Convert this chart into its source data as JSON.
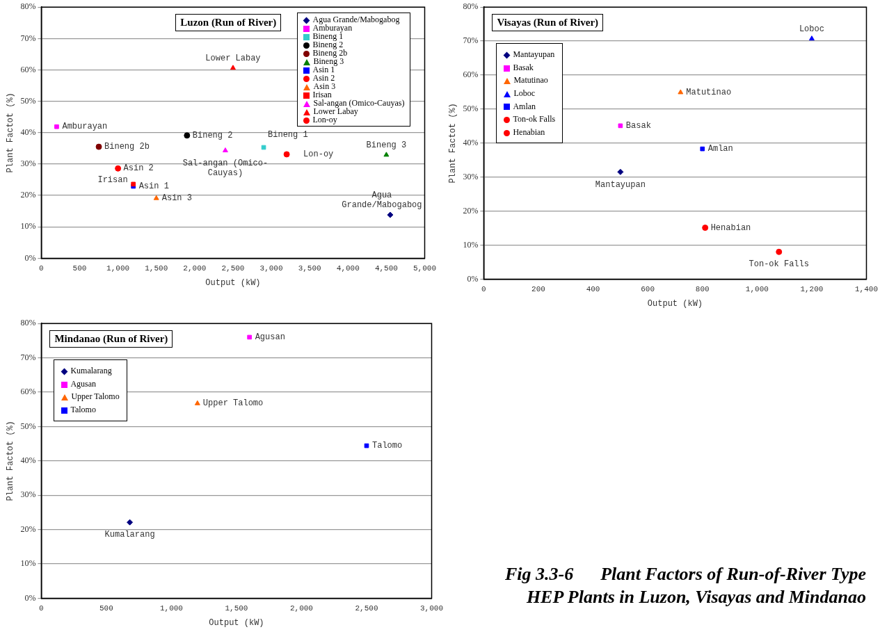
{
  "chart_data": [
    {
      "type": "scatter",
      "title": "Luzon (Run of River)",
      "xlabel": "Output (kW)",
      "ylabel": "Plant Factot (%)",
      "xlim": [
        0,
        5000
      ],
      "xticks": [
        0,
        500,
        {
          "value": 1000,
          "label": "1,000"
        },
        {
          "value": 1500,
          "label": "1,500"
        },
        {
          "value": 2000,
          "label": "2,000"
        },
        {
          "value": 2500,
          "label": "2,500"
        },
        {
          "value": 3000,
          "label": "3,000"
        },
        {
          "value": 3500,
          "label": "3,500"
        },
        {
          "value": 4000,
          "label": "4,000"
        },
        {
          "value": 4500,
          "label": "4,500"
        },
        {
          "value": 5000,
          "label": "5,000"
        }
      ],
      "ylim": [
        0,
        80
      ],
      "yticks": [
        {
          "value": 0,
          "label": "0%"
        },
        {
          "value": 10,
          "label": "10%"
        },
        {
          "value": 20,
          "label": "20%"
        },
        {
          "value": 30,
          "label": "30%"
        },
        {
          "value": 40,
          "label": "40%"
        },
        {
          "value": 50,
          "label": "50%"
        },
        {
          "value": 60,
          "label": "60%"
        },
        {
          "value": 70,
          "label": "70%"
        },
        {
          "value": 80,
          "label": "80%"
        }
      ],
      "grid": "y",
      "legend": "top right",
      "series": [
        {
          "name": "Agua Grande/Mabogabog",
          "color": "#000080",
          "marker": "diamond",
          "x": [
            4550
          ],
          "values": [
            13.8
          ]
        },
        {
          "name": "Amburayan",
          "color": "#ff00ff",
          "marker": "square",
          "x": [
            200
          ],
          "values": [
            41.9
          ]
        },
        {
          "name": "Bineng 1",
          "color": "#33cccc",
          "marker": "square",
          "x": [
            2900
          ],
          "values": [
            35.3
          ]
        },
        {
          "name": "Bineng 2",
          "color": "#000000",
          "marker": "circle",
          "x": [
            1900
          ],
          "values": [
            39.1
          ]
        },
        {
          "name": "Bineng 2b",
          "color": "#800000",
          "marker": "circle",
          "x": [
            750
          ],
          "values": [
            35.5
          ]
        },
        {
          "name": "Bineng 3",
          "color": "#008000",
          "marker": "triangle",
          "x": [
            4500
          ],
          "values": [
            32.9
          ]
        },
        {
          "name": "Asin 1",
          "color": "#0000ff",
          "marker": "square",
          "x": [
            1200
          ],
          "values": [
            22.9
          ]
        },
        {
          "name": "Asin 2",
          "color": "#ff0000",
          "marker": "circle",
          "x": [
            1000
          ],
          "values": [
            28.6
          ]
        },
        {
          "name": "Asin 3",
          "color": "#ff6600",
          "marker": "triangle",
          "x": [
            1500
          ],
          "values": [
            19.1
          ]
        },
        {
          "name": "Irisan",
          "color": "#ff0000",
          "marker": "square",
          "x": [
            1200
          ],
          "values": [
            23.6
          ]
        },
        {
          "name": "Sal-angan (Omico-Cauyas)",
          "color": "#ff00ff",
          "marker": "triangle",
          "x": [
            2400
          ],
          "values": [
            34.3
          ]
        },
        {
          "name": "Lower Labay",
          "color": "#ff0000",
          "marker": "triangle",
          "x": [
            2500
          ],
          "values": [
            60.6
          ]
        },
        {
          "name": "Lon-oy",
          "color": "#ff0000",
          "marker": "circle",
          "x": [
            3200
          ],
          "values": [
            33.1
          ]
        }
      ]
    },
    {
      "type": "scatter",
      "title": "Visayas (Run of River)",
      "xlabel": "Output (kW)",
      "ylabel": "Plant Factot (%)",
      "xlim": [
        0,
        1400
      ],
      "xticks": [
        0,
        200,
        400,
        600,
        800,
        {
          "value": 1000,
          "label": "1,000"
        },
        {
          "value": 1200,
          "label": "1,200"
        },
        {
          "value": 1400,
          "label": "1,400"
        }
      ],
      "ylim": [
        0,
        80
      ],
      "yticks": [
        {
          "value": 0,
          "label": "0%"
        },
        {
          "value": 10,
          "label": "10%"
        },
        {
          "value": 20,
          "label": "20%"
        },
        {
          "value": 30,
          "label": "30%"
        },
        {
          "value": 40,
          "label": "40%"
        },
        {
          "value": 50,
          "label": "50%"
        },
        {
          "value": 60,
          "label": "60%"
        },
        {
          "value": 70,
          "label": "70%"
        },
        {
          "value": 80,
          "label": "80%"
        }
      ],
      "grid": "y",
      "legend": "top left",
      "series": [
        {
          "name": "Mantayupan",
          "color": "#000080",
          "marker": "diamond",
          "x": [
            500
          ],
          "values": [
            31.5
          ]
        },
        {
          "name": "Basak",
          "color": "#ff00ff",
          "marker": "square",
          "x": [
            500
          ],
          "values": [
            45.1
          ]
        },
        {
          "name": "Matutinao",
          "color": "#ff6600",
          "marker": "triangle",
          "x": [
            720
          ],
          "values": [
            54.9
          ]
        },
        {
          "name": "Loboc",
          "color": "#0000ff",
          "marker": "triangle",
          "x": [
            1200
          ],
          "values": [
            70.7
          ]
        },
        {
          "name": "Amlan",
          "color": "#0000ff",
          "marker": "square",
          "x": [
            800
          ],
          "values": [
            38.3
          ]
        },
        {
          "name": "Ton-ok Falls",
          "color": "#ff0000",
          "marker": "circle",
          "x": [
            1080
          ],
          "values": [
            8.0
          ]
        },
        {
          "name": "Henabian",
          "color": "#ff0000",
          "marker": "circle",
          "x": [
            810
          ],
          "values": [
            15.1
          ]
        }
      ]
    },
    {
      "type": "scatter",
      "title": "Mindanao (Run of River)",
      "xlabel": "Output (kW)",
      "ylabel": "Plant Factot (%)",
      "xlim": [
        0,
        3000
      ],
      "xticks": [
        0,
        500,
        {
          "value": 1000,
          "label": "1,000"
        },
        {
          "value": 1500,
          "label": "1,500"
        },
        {
          "value": 2000,
          "label": "2,000"
        },
        {
          "value": 2500,
          "label": "2,500"
        },
        {
          "value": 3000,
          "label": "3,000"
        }
      ],
      "ylim": [
        0,
        80
      ],
      "yticks": [
        {
          "value": 0,
          "label": "0%"
        },
        {
          "value": 10,
          "label": "10%"
        },
        {
          "value": 20,
          "label": "20%"
        },
        {
          "value": 30,
          "label": "30%"
        },
        {
          "value": 40,
          "label": "40%"
        },
        {
          "value": 50,
          "label": "50%"
        },
        {
          "value": 60,
          "label": "60%"
        },
        {
          "value": 70,
          "label": "70%"
        },
        {
          "value": 80,
          "label": "80%"
        }
      ],
      "grid": "y",
      "legend": "top left",
      "series": [
        {
          "name": "Kumalarang",
          "color": "#000080",
          "marker": "diamond",
          "x": [
            680
          ],
          "values": [
            22.1
          ]
        },
        {
          "name": "Agusan",
          "color": "#ff00ff",
          "marker": "square",
          "x": [
            1600
          ],
          "values": [
            76.0
          ]
        },
        {
          "name": "Upper Talomo",
          "color": "#ff6600",
          "marker": "triangle",
          "x": [
            1200
          ],
          "values": [
            56.7
          ]
        },
        {
          "name": "Talomo",
          "color": "#0000ff",
          "marker": "square",
          "x": [
            2500
          ],
          "values": [
            44.4
          ]
        }
      ]
    },
    {
      "type": "other",
      "annotations": [
        "Fig 3.3-6      Plant Factors of Run-of-River Type",
        "HEP Plants in Luzon, Visayas and Mindanao"
      ]
    }
  ]
}
